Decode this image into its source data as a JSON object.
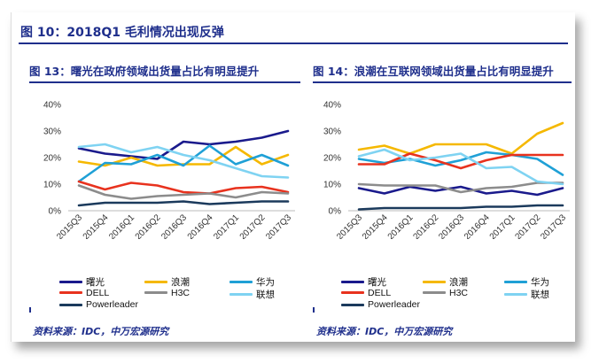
{
  "main_title": "图 10：2018Q1 毛利情况出现反弹",
  "panels": [
    {
      "title": "图 13：曙光在政府领域出货量占比有明显提升",
      "source": "资料来源：IDC，中万宏源研究"
    },
    {
      "title": "图 14：浪潮在互联网领域出货量占比有明显提升",
      "source": "资料来源：IDC，中万宏源研究"
    }
  ],
  "chart_data": [
    {
      "type": "line",
      "title": "图 13：曙光在政府领域出货量占比有明显提升",
      "categories": [
        "2015Q3",
        "2015Q4",
        "2016Q1",
        "2016Q2",
        "2016Q3",
        "2016Q4",
        "2017Q1",
        "2017Q2",
        "2017Q3"
      ],
      "yticks": [
        "0%",
        "10%",
        "20%",
        "30%",
        "40%"
      ],
      "ylim": [
        0,
        40
      ],
      "series": [
        {
          "name": "曙光",
          "color": "#1a1a8c",
          "values": [
            23.5,
            21.5,
            20.5,
            19.5,
            26,
            25,
            26,
            27.5,
            30
          ]
        },
        {
          "name": "浪潮",
          "color": "#f5b800",
          "values": [
            18.5,
            17,
            20,
            17,
            17.5,
            17.5,
            24,
            17.5,
            21
          ]
        },
        {
          "name": "华为",
          "color": "#1fa0d6",
          "values": [
            11,
            18,
            17.5,
            21,
            17,
            24.5,
            17.5,
            21,
            17
          ]
        },
        {
          "name": "DELL",
          "color": "#e8321e",
          "values": [
            11,
            8,
            10.5,
            9.5,
            7,
            6.5,
            8.5,
            9,
            7
          ]
        },
        {
          "name": "H3C",
          "color": "#8c8c8c",
          "values": [
            9.5,
            6,
            4.5,
            5.5,
            6,
            6.5,
            5,
            7,
            6.5
          ]
        },
        {
          "name": "联想",
          "color": "#7fd3f2",
          "values": [
            24,
            25,
            22,
            24,
            21,
            19,
            16,
            13,
            12.5
          ]
        },
        {
          "name": "Powerleader",
          "color": "#1b3a5c",
          "values": [
            2,
            3,
            3,
            3,
            3.5,
            2.5,
            3,
            3.5,
            3.5
          ]
        }
      ]
    },
    {
      "type": "line",
      "title": "图 14：浪潮在互联网领域出货量占比有明显提升",
      "categories": [
        "2015Q3",
        "2015Q4",
        "2016Q1",
        "2016Q2",
        "2016Q3",
        "2016Q4",
        "2017Q1",
        "2017Q2",
        "2017Q3"
      ],
      "yticks": [
        "0%",
        "10%",
        "20%",
        "30%",
        "40%"
      ],
      "ylim": [
        0,
        40
      ],
      "series": [
        {
          "name": "曙光",
          "color": "#1a1a8c",
          "values": [
            8.5,
            6.5,
            9,
            7.5,
            9,
            6.5,
            7.5,
            6,
            8.5
          ]
        },
        {
          "name": "浪潮",
          "color": "#f5b800",
          "values": [
            23,
            24.5,
            21.5,
            25,
            25,
            25,
            21.5,
            29,
            33
          ]
        },
        {
          "name": "华为",
          "color": "#1fa0d6",
          "values": [
            19.5,
            18,
            19.5,
            17,
            19,
            22,
            21,
            19.5,
            13.5
          ]
        },
        {
          "name": "DELL",
          "color": "#e8321e",
          "values": [
            17.5,
            17.5,
            21.5,
            19,
            16,
            19,
            21,
            21,
            21
          ]
        },
        {
          "name": "H3C",
          "color": "#8c8c8c",
          "values": [
            10,
            9.5,
            9.5,
            9.5,
            7,
            8.5,
            9,
            10.5,
            10.5
          ]
        },
        {
          "name": "联想",
          "color": "#7fd3f2",
          "values": [
            20.5,
            23,
            19,
            20,
            21.5,
            16,
            16.5,
            11,
            10
          ]
        },
        {
          "name": "Powerleader",
          "color": "#1b3a5c",
          "values": [
            0.5,
            1,
            1,
            1,
            1,
            1.5,
            1.5,
            2,
            2
          ]
        }
      ]
    }
  ]
}
